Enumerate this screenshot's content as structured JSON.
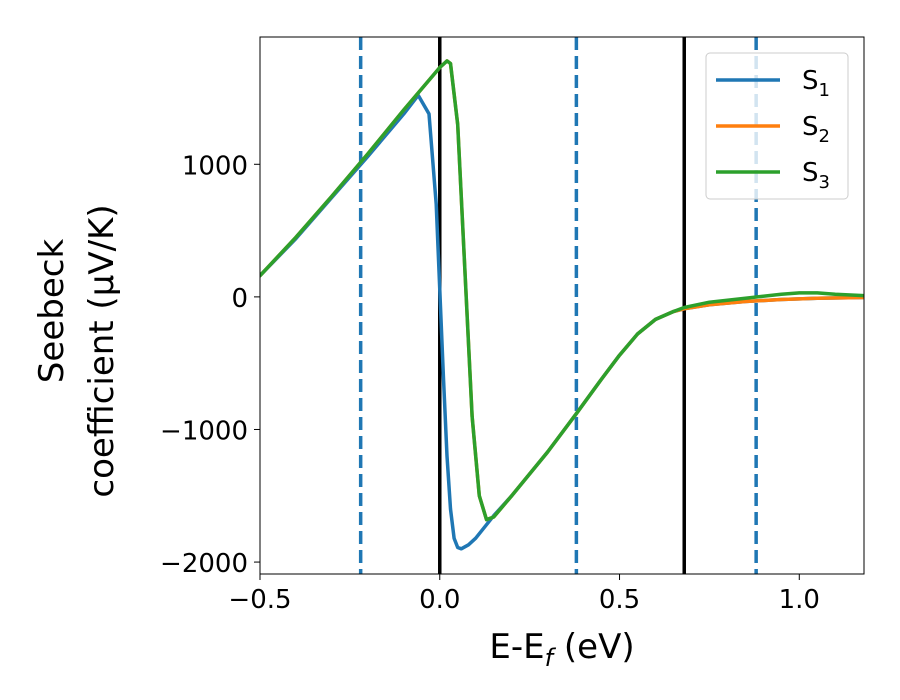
{
  "chart_data": {
    "type": "line",
    "xlabel": {
      "main": "E-E",
      "sub": "f",
      "tail": " (eV)"
    },
    "ylabel": {
      "line1": "Seebeck",
      "line2": "coefficient  (μV/K)"
    },
    "xlim": [
      -0.5,
      1.18
    ],
    "ylim": [
      -2090,
      1960
    ],
    "xticks": [
      {
        "value": -0.5,
        "label": "−0.5"
      },
      {
        "value": 0.0,
        "label": "0.0"
      },
      {
        "value": 0.5,
        "label": "0.5"
      },
      {
        "value": 1.0,
        "label": "1.0"
      }
    ],
    "yticks": [
      {
        "value": -2000,
        "label": "−2000"
      },
      {
        "value": -1000,
        "label": "−1000"
      },
      {
        "value": 0,
        "label": "0"
      },
      {
        "value": 1000,
        "label": "1000"
      }
    ],
    "grid": false,
    "legend_position": "top-right",
    "vlines": [
      {
        "x": 0.0,
        "style": "solid",
        "color": "#000000"
      },
      {
        "x": 0.68,
        "style": "solid",
        "color": "#000000"
      },
      {
        "x": -0.22,
        "style": "dashed",
        "color": "#1f77b4"
      },
      {
        "x": 0.38,
        "style": "dashed",
        "color": "#1f77b4"
      },
      {
        "x": 0.88,
        "style": "dashed",
        "color": "#1f77b4"
      }
    ],
    "series": [
      {
        "name": "S",
        "sub": "1",
        "color": "#1f77b4",
        "x": [
          -0.5,
          -0.4,
          -0.3,
          -0.2,
          -0.1,
          -0.06,
          -0.03,
          -0.01,
          0.0,
          0.01,
          0.02,
          0.03,
          0.04,
          0.05,
          0.06,
          0.08,
          0.1,
          0.15,
          0.2,
          0.3,
          0.38,
          0.45,
          0.5,
          0.55,
          0.6,
          0.65,
          0.68,
          0.75,
          0.85,
          0.95,
          1.05,
          1.18
        ],
        "y": [
          160,
          440,
          750,
          1060,
          1380,
          1520,
          1380,
          700,
          50,
          -600,
          -1200,
          -1600,
          -1820,
          -1890,
          -1900,
          -1870,
          -1820,
          -1650,
          -1500,
          -1170,
          -880,
          -620,
          -440,
          -280,
          -170,
          -110,
          -90,
          -60,
          -35,
          -20,
          -10,
          -5
        ]
      },
      {
        "name": "S",
        "sub": "2",
        "color": "#ff7f0e",
        "x": [
          -0.5,
          -0.4,
          -0.3,
          -0.2,
          -0.1,
          0.0,
          0.02,
          0.03,
          0.05,
          0.07,
          0.09,
          0.11,
          0.13,
          0.15,
          0.2,
          0.3,
          0.38,
          0.45,
          0.5,
          0.55,
          0.6,
          0.65,
          0.68,
          0.75,
          0.85,
          0.95,
          1.05,
          1.18
        ],
        "y": [
          160,
          450,
          760,
          1080,
          1410,
          1730,
          1780,
          1760,
          1300,
          200,
          -900,
          -1500,
          -1680,
          -1660,
          -1500,
          -1170,
          -880,
          -620,
          -440,
          -280,
          -170,
          -110,
          -90,
          -60,
          -35,
          -20,
          -10,
          -5
        ]
      },
      {
        "name": "S",
        "sub": "3",
        "color": "#2ca02c",
        "x": [
          -0.5,
          -0.4,
          -0.3,
          -0.2,
          -0.1,
          0.0,
          0.02,
          0.03,
          0.05,
          0.07,
          0.09,
          0.11,
          0.13,
          0.15,
          0.2,
          0.3,
          0.38,
          0.45,
          0.5,
          0.55,
          0.6,
          0.65,
          0.68,
          0.75,
          0.85,
          0.95,
          1.0,
          1.05,
          1.1,
          1.18
        ],
        "y": [
          160,
          450,
          760,
          1080,
          1410,
          1730,
          1780,
          1760,
          1300,
          200,
          -900,
          -1500,
          -1680,
          -1660,
          -1500,
          -1170,
          -880,
          -620,
          -440,
          -280,
          -170,
          -110,
          -80,
          -40,
          -10,
          20,
          30,
          30,
          20,
          10
        ]
      }
    ]
  }
}
